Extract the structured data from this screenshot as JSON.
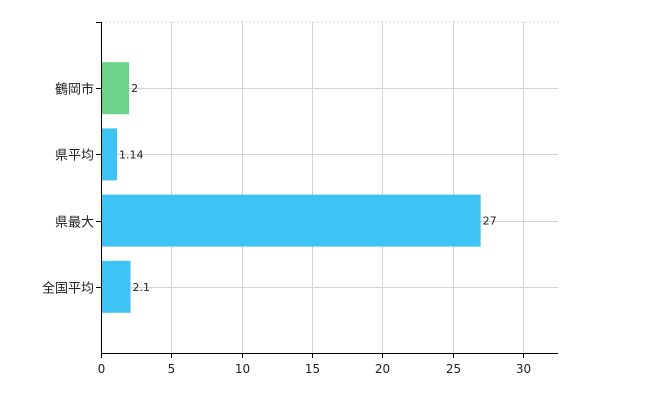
{
  "chart_data": {
    "type": "bar",
    "orientation": "horizontal",
    "categories": [
      "鶴岡市",
      "県平均",
      "県最大",
      "全国平均"
    ],
    "values": [
      2,
      1.14,
      27,
      2.1
    ],
    "value_labels": [
      "2",
      "1.14",
      "27",
      "2.1"
    ],
    "colors": [
      "#6dd28a",
      "#3ec3f5",
      "#3ec3f5",
      "#3ec3f5"
    ],
    "xlim": [
      0,
      32.5
    ],
    "xticks": [
      0,
      5,
      10,
      15,
      20,
      25,
      30
    ],
    "grid": true,
    "title": "",
    "xlabel": "",
    "ylabel": ""
  },
  "colors": {
    "grid": "#d3d3d3",
    "axis": "#000000"
  }
}
